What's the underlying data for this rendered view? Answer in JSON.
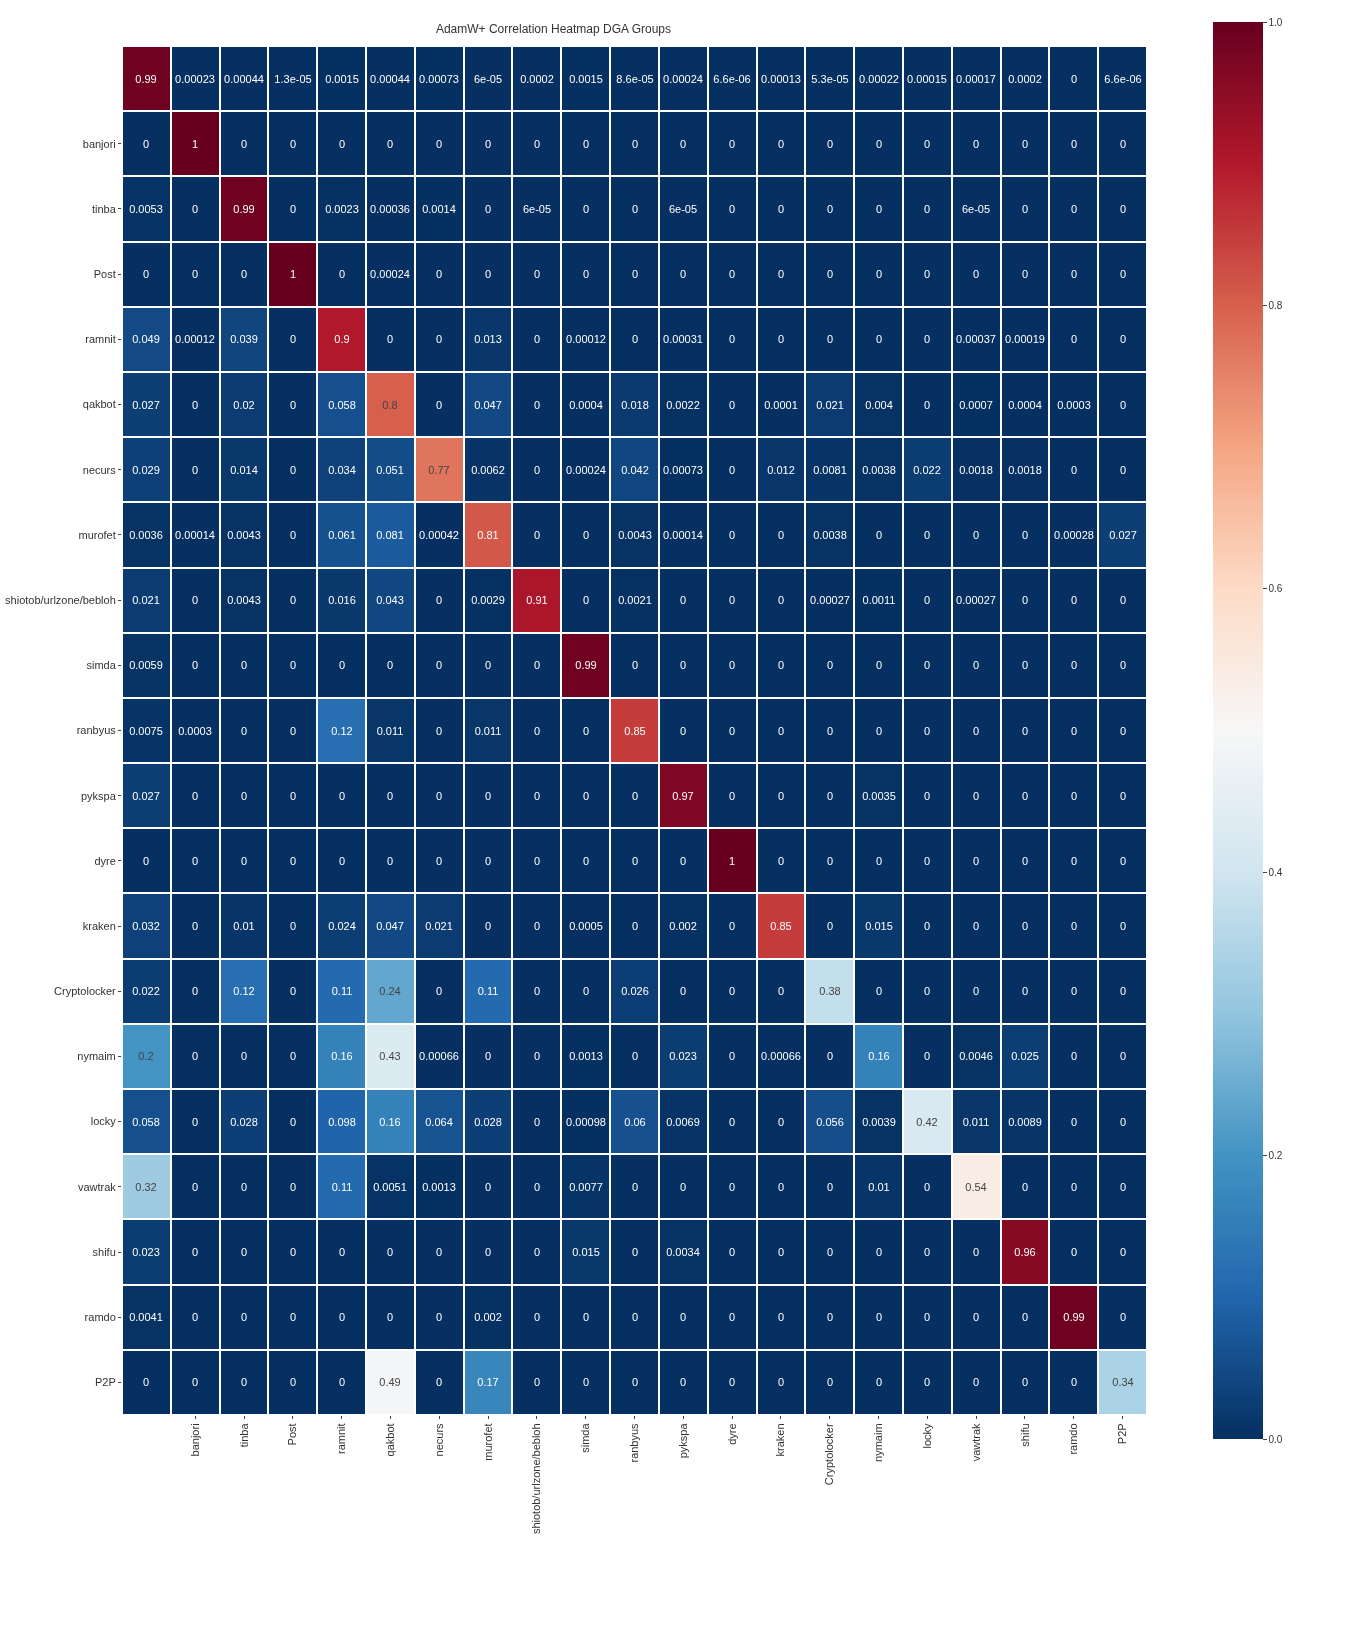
{
  "chart_data": {
    "type": "heatmap",
    "title": "AdamW+ Correlation Heatmap DGA Groups",
    "categories": [
      null,
      "banjori",
      "tinba",
      "Post",
      "ramnit",
      "qakbot",
      "necurs",
      "murofet",
      "shiotob/urlzone/bebloh",
      "simda",
      "ranbyus",
      "pykspa",
      "dyre",
      "kraken",
      "Cryptolocker",
      "nymaim",
      "locky",
      "vawtrak",
      "shifu",
      "ramdo",
      "P2P"
    ],
    "y_categories": [
      null,
      "banjori",
      "tinba",
      "Post",
      "ramnit",
      "qakbot",
      "necurs",
      "murofet",
      "shiotob/urlzone/bebloh",
      "simda",
      "ranbyus",
      "pykspa",
      "dyre",
      "kraken",
      "Cryptolocker",
      "nymaim",
      "locky",
      "vawtrak",
      "shifu",
      "ramdo",
      "P2P"
    ],
    "cells": [
      [
        0.99,
        0.00023,
        0.00044,
        1.3e-05,
        0.0015,
        0.00044,
        0.00073,
        6e-05,
        0.0002,
        0.0015,
        8.6e-05,
        0.00024,
        6.6e-06,
        0.00013,
        5.3e-05,
        0.00022,
        0.00015,
        0.00017,
        0.0002,
        0,
        6.6e-06
      ],
      [
        0,
        1,
        0,
        0,
        0,
        0,
        0,
        0,
        0,
        0,
        0,
        0,
        0,
        0,
        0,
        0,
        0,
        0,
        0,
        0,
        0
      ],
      [
        0.0053,
        0,
        0.99,
        0,
        0.0023,
        0.00036,
        0.0014,
        0,
        6e-05,
        0,
        0,
        6e-05,
        0,
        0,
        0,
        0,
        0,
        6e-05,
        0,
        0,
        0
      ],
      [
        0,
        0,
        0,
        1,
        0,
        0.00024,
        0,
        0,
        0,
        0,
        0,
        0,
        0,
        0,
        0,
        0,
        0,
        0,
        0,
        0,
        0
      ],
      [
        0.049,
        0.00012,
        0.039,
        0,
        0.9,
        0,
        0,
        0.013,
        0,
        0.00012,
        0,
        0.00031,
        0,
        0,
        0,
        0,
        0,
        0.00037,
        0.00019,
        0,
        0
      ],
      [
        0.027,
        0,
        0.02,
        0,
        0.058,
        0.8,
        0,
        0.047,
        0,
        0.0004,
        0.018,
        0.0022,
        0,
        0.0001,
        0.021,
        0.004,
        0,
        0.0007,
        0.0004,
        0.0003,
        0
      ],
      [
        0.029,
        0,
        0.014,
        0,
        0.034,
        0.051,
        0.77,
        0.0062,
        0,
        0.00024,
        0.042,
        0.00073,
        0,
        0.012,
        0.0081,
        0.0038,
        0.022,
        0.0018,
        0.0018,
        0,
        0
      ],
      [
        0.0036,
        0.00014,
        0.0043,
        0,
        0.061,
        0.081,
        0.00042,
        0.81,
        0,
        0,
        0.0043,
        0.00014,
        0,
        0,
        0.0038,
        0,
        0,
        0,
        0,
        0.00028,
        0.027
      ],
      [
        0.021,
        0,
        0.0043,
        0,
        0.016,
        0.043,
        0,
        0.0029,
        0.91,
        0,
        0.0021,
        0,
        0,
        0,
        0.00027,
        0.0011,
        0,
        0.00027,
        0,
        0,
        0
      ],
      [
        0.0059,
        0,
        0,
        0,
        0,
        0,
        0,
        0,
        0,
        0.99,
        0,
        0,
        0,
        0,
        0,
        0,
        0,
        0,
        0,
        0,
        0
      ],
      [
        0.0075,
        0.0003,
        0,
        0,
        0.12,
        0.011,
        0,
        0.011,
        0,
        0,
        0.85,
        0,
        0,
        0,
        0,
        0,
        0,
        0,
        0,
        0,
        0
      ],
      [
        0.027,
        0,
        0,
        0,
        0,
        0,
        0,
        0,
        0,
        0,
        0,
        0.97,
        0,
        0,
        0,
        0.0035,
        0,
        0,
        0,
        0,
        0
      ],
      [
        0,
        0,
        0,
        0,
        0,
        0,
        0,
        0,
        0,
        0,
        0,
        0,
        1,
        0,
        0,
        0,
        0,
        0,
        0,
        0,
        0
      ],
      [
        0.032,
        0,
        0.01,
        0,
        0.024,
        0.047,
        0.021,
        0,
        0,
        0.0005,
        0,
        0.002,
        0,
        0.85,
        0,
        0.015,
        0,
        0,
        0,
        0,
        0
      ],
      [
        0.022,
        0,
        0.12,
        0,
        0.11,
        0.24,
        0,
        0.11,
        0,
        0,
        0.026,
        0,
        0,
        0,
        0.38,
        0,
        0,
        0,
        0,
        0,
        0
      ],
      [
        0.2,
        0,
        0,
        0,
        0.16,
        0.43,
        0.00066,
        0,
        0,
        0.0013,
        0,
        0.023,
        0,
        0.00066,
        0,
        0.16,
        0,
        0.0046,
        0.025,
        0,
        0
      ],
      [
        0.058,
        0,
        0.028,
        0,
        0.098,
        0.16,
        0.064,
        0.028,
        0,
        0.00098,
        0.06,
        0.0069,
        0,
        0,
        0.056,
        0.0039,
        0.42,
        0.011,
        0.0089,
        0,
        0
      ],
      [
        0.32,
        0,
        0,
        0,
        0.11,
        0.0051,
        0.0013,
        0,
        0,
        0.0077,
        0,
        0,
        0,
        0,
        0,
        0.01,
        0,
        0.54,
        0,
        0,
        0
      ],
      [
        0.023,
        0,
        0,
        0,
        0,
        0,
        0,
        0,
        0,
        0.015,
        0,
        0.0034,
        0,
        0,
        0,
        0,
        0,
        0,
        0.96,
        0,
        0
      ],
      [
        0.0041,
        0,
        0,
        0,
        0,
        0,
        0,
        0.002,
        0,
        0,
        0,
        0,
        0,
        0,
        0,
        0,
        0,
        0,
        0,
        0.99,
        0
      ],
      [
        0,
        0,
        0,
        0,
        0,
        0.49,
        0,
        0.17,
        0,
        0,
        0,
        0,
        0,
        0,
        0,
        0,
        0,
        0,
        0,
        0,
        0.34
      ]
    ],
    "cell_labels": [
      [
        "0.99",
        "0.00023",
        "0.00044",
        "1.3e-05",
        "0.0015",
        "0.00044",
        "0.00073",
        "6e-05",
        "0.0002",
        "0.0015",
        "8.6e-05",
        "0.00024",
        "6.6e-06",
        "0.00013",
        "5.3e-05",
        "0.00022",
        "0.00015",
        "0.00017",
        "0.0002",
        "0",
        "6.6e-06"
      ],
      [
        "0",
        "1",
        "0",
        "0",
        "0",
        "0",
        "0",
        "0",
        "0",
        "0",
        "0",
        "0",
        "0",
        "0",
        "0",
        "0",
        "0",
        "0",
        "0",
        "0",
        "0"
      ],
      [
        "0.0053",
        "0",
        "0.99",
        "0",
        "0.0023",
        "0.00036",
        "0.0014",
        "0",
        "6e-05",
        "0",
        "0",
        "6e-05",
        "0",
        "0",
        "0",
        "0",
        "0",
        "6e-05",
        "0",
        "0",
        "0"
      ],
      [
        "0",
        "0",
        "0",
        "1",
        "0",
        "0.00024",
        "0",
        "0",
        "0",
        "0",
        "0",
        "0",
        "0",
        "0",
        "0",
        "0",
        "0",
        "0",
        "0",
        "0",
        "0"
      ],
      [
        "0.049",
        "0.00012",
        "0.039",
        "0",
        "0.9",
        "0",
        "0",
        "0.013",
        "0",
        "0.00012",
        "0",
        "0.00031",
        "0",
        "0",
        "0",
        "0",
        "0",
        "0.00037",
        "0.00019",
        "0",
        "0"
      ],
      [
        "0.027",
        "0",
        "0.02",
        "0",
        "0.058",
        "0.8",
        "0",
        "0.047",
        "0",
        "0.0004",
        "0.018",
        "0.0022",
        "0",
        "0.0001",
        "0.021",
        "0.004",
        "0",
        "0.0007",
        "0.0004",
        "0.0003",
        "0"
      ],
      [
        "0.029",
        "0",
        "0.014",
        "0",
        "0.034",
        "0.051",
        "0.77",
        "0.0062",
        "0",
        "0.00024",
        "0.042",
        "0.00073",
        "0",
        "0.012",
        "0.0081",
        "0.0038",
        "0.022",
        "0.0018",
        "0.0018",
        "0",
        "0"
      ],
      [
        "0.0036",
        "0.00014",
        "0.0043",
        "0",
        "0.061",
        "0.081",
        "0.00042",
        "0.81",
        "0",
        "0",
        "0.0043",
        "0.00014",
        "0",
        "0",
        "0.0038",
        "0",
        "0",
        "0",
        "0",
        "0.00028",
        "0.027"
      ],
      [
        "0.021",
        "0",
        "0.0043",
        "0",
        "0.016",
        "0.043",
        "0",
        "0.0029",
        "0.91",
        "0",
        "0.0021",
        "0",
        "0",
        "0",
        "0.00027",
        "0.0011",
        "0",
        "0.00027",
        "0",
        "0",
        "0"
      ],
      [
        "0.0059",
        "0",
        "0",
        "0",
        "0",
        "0",
        "0",
        "0",
        "0",
        "0.99",
        "0",
        "0",
        "0",
        "0",
        "0",
        "0",
        "0",
        "0",
        "0",
        "0",
        "0"
      ],
      [
        "0.0075",
        "0.0003",
        "0",
        "0",
        "0.12",
        "0.011",
        "0",
        "0.011",
        "0",
        "0",
        "0.85",
        "0",
        "0",
        "0",
        "0",
        "0",
        "0",
        "0",
        "0",
        "0",
        "0"
      ],
      [
        "0.027",
        "0",
        "0",
        "0",
        "0",
        "0",
        "0",
        "0",
        "0",
        "0",
        "0",
        "0.97",
        "0",
        "0",
        "0",
        "0.0035",
        "0",
        "0",
        "0",
        "0",
        "0"
      ],
      [
        "0",
        "0",
        "0",
        "0",
        "0",
        "0",
        "0",
        "0",
        "0",
        "0",
        "0",
        "0",
        "1",
        "0",
        "0",
        "0",
        "0",
        "0",
        "0",
        "0",
        "0"
      ],
      [
        "0.032",
        "0",
        "0.01",
        "0",
        "0.024",
        "0.047",
        "0.021",
        "0",
        "0",
        "0.0005",
        "0",
        "0.002",
        "0",
        "0.85",
        "0",
        "0.015",
        "0",
        "0",
        "0",
        "0",
        "0"
      ],
      [
        "0.022",
        "0",
        "0.12",
        "0",
        "0.11",
        "0.24",
        "0",
        "0.11",
        "0",
        "0",
        "0.026",
        "0",
        "0",
        "0",
        "0.38",
        "0",
        "0",
        "0",
        "0",
        "0",
        "0"
      ],
      [
        "0.2",
        "0",
        "0",
        "0",
        "0.16",
        "0.43",
        "0.00066",
        "0",
        "0",
        "0.0013",
        "0",
        "0.023",
        "0",
        "0.00066",
        "0",
        "0.16",
        "0",
        "0.0046",
        "0.025",
        "0",
        "0"
      ],
      [
        "0.058",
        "0",
        "0.028",
        "0",
        "0.098",
        "0.16",
        "0.064",
        "0.028",
        "0",
        "0.00098",
        "0.06",
        "0.0069",
        "0",
        "0",
        "0.056",
        "0.0039",
        "0.42",
        "0.011",
        "0.0089",
        "0",
        "0"
      ],
      [
        "0.32",
        "0",
        "0",
        "0",
        "0.11",
        "0.0051",
        "0.0013",
        "0",
        "0",
        "0.0077",
        "0",
        "0",
        "0",
        "0",
        "0",
        "0.01",
        "0",
        "0.54",
        "0",
        "0",
        "0"
      ],
      [
        "0.023",
        "0",
        "0",
        "0",
        "0",
        "0",
        "0",
        "0",
        "0",
        "0.015",
        "0",
        "0.0034",
        "0",
        "0",
        "0",
        "0",
        "0",
        "0",
        "0.96",
        "0",
        "0"
      ],
      [
        "0.0041",
        "0",
        "0",
        "0",
        "0",
        "0",
        "0",
        "0.002",
        "0",
        "0",
        "0",
        "0",
        "0",
        "0",
        "0",
        "0",
        "0",
        "0",
        "0",
        "0.99",
        "0"
      ],
      [
        "0",
        "0",
        "0",
        "0",
        "0",
        "0.49",
        "0",
        "0.17",
        "0",
        "0",
        "0",
        "0",
        "0",
        "0",
        "0",
        "0",
        "0",
        "0",
        "0",
        "0",
        "0.34"
      ]
    ],
    "clim": [
      0,
      1
    ],
    "cticks": [
      {
        "value": 0,
        "label": "0.0"
      },
      {
        "value": 0.2,
        "label": "0.2"
      },
      {
        "value": 0.4,
        "label": "0.4"
      },
      {
        "value": 0.6,
        "label": "0.6"
      },
      {
        "value": 0.8,
        "label": "0.8"
      },
      {
        "value": 1,
        "label": "1.0"
      }
    ]
  }
}
